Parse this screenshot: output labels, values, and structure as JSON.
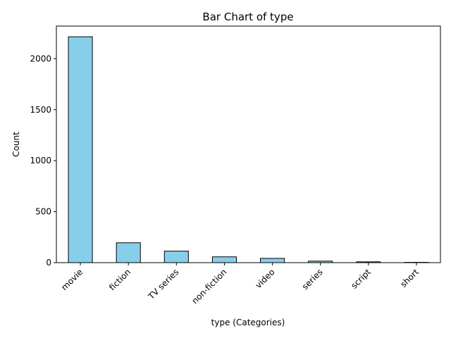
{
  "chart_data": {
    "type": "bar",
    "title": "Bar Chart of type",
    "xlabel": "type (Categories)",
    "ylabel": "Count",
    "categories": [
      "movie",
      "fiction",
      "TV series",
      "non-fiction",
      "video",
      "series",
      "script",
      "short"
    ],
    "values": [
      2215,
      195,
      113,
      57,
      42,
      15,
      8,
      3
    ],
    "ylim": [
      0,
      2320
    ],
    "yticks": [
      0,
      500,
      1000,
      1500,
      2000
    ],
    "bar_color": "#87ceeb",
    "bar_edge_color": "#000000",
    "grid": false,
    "legend": "none"
  }
}
